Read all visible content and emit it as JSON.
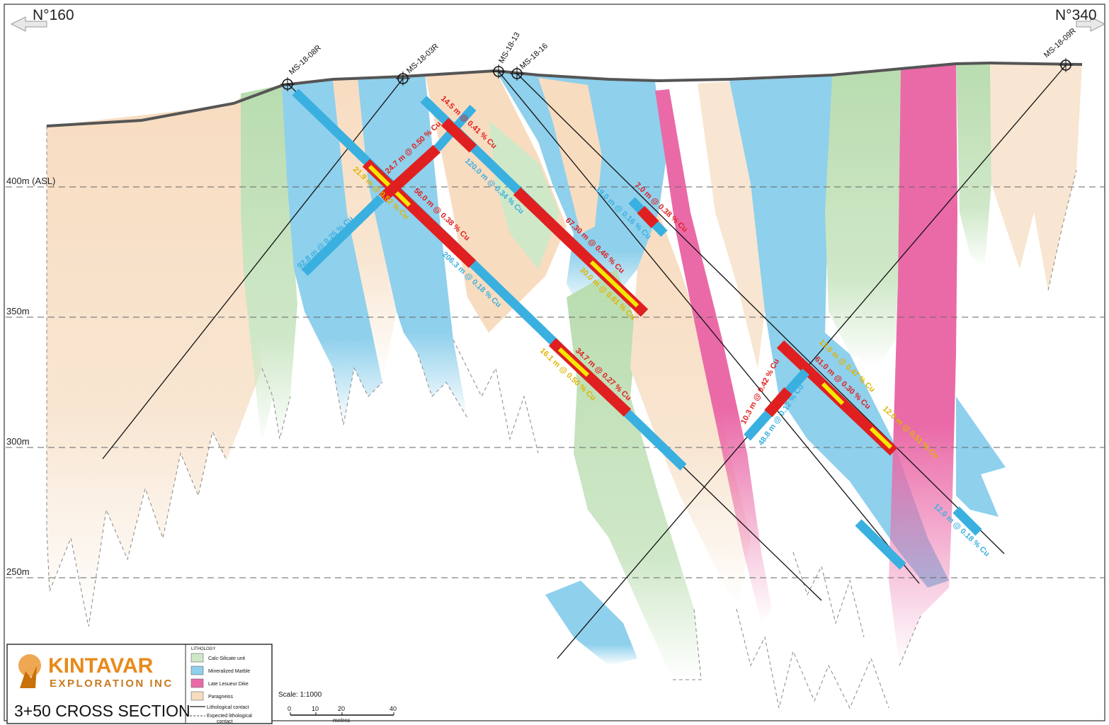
{
  "orientation": {
    "left": "N°160",
    "right": "N°340"
  },
  "elevations": [
    "400m (ASL)",
    "350m",
    "300m",
    "250m"
  ],
  "drillholes": [
    "MS-18-08R",
    "MS-18-03R",
    "MS-18-13",
    "MS-18-16",
    "MS-18-09R"
  ],
  "intercepts": [
    {
      "text": "92.8 m @ 0.25 % Cu",
      "color": "#3ab0e0"
    },
    {
      "text": "24.7 m @ 0.50 % Cu",
      "color": "#e02020"
    },
    {
      "text": "21.9 m @ 0.52 % Cu",
      "color": "#e0b400"
    },
    {
      "text": "56.0 m @ 0.38 % Cu",
      "color": "#e02020"
    },
    {
      "text": "206.3 m @ 0.18 % Cu",
      "color": "#3ab0e0"
    },
    {
      "text": "14.5 m @ 0.41 % Cu",
      "color": "#e02020"
    },
    {
      "text": "120.0 m @ 0.34 % Cu",
      "color": "#3ab0e0"
    },
    {
      "text": "67.30 m @ 0.46 % Cu",
      "color": "#e02020"
    },
    {
      "text": "30.0 m @ 0.61 % Cu",
      "color": "#e0b400"
    },
    {
      "text": "34.7 m @ 0.27 % Cu",
      "color": "#e02020"
    },
    {
      "text": "16.1 m @ 0.50 % Cu",
      "color": "#e0b400"
    },
    {
      "text": "19.0 m @ 0.16 % Cu",
      "color": "#3ab0e0"
    },
    {
      "text": "7.0 m @ 0.38 % Cu",
      "color": "#e02020"
    },
    {
      "text": "10.3 m @ 0.42 % Cu",
      "color": "#e02020"
    },
    {
      "text": "48.8 m @ 0.12 % Cu",
      "color": "#3ab0e0"
    },
    {
      "text": "13.0 m @ 0.47 % Cu",
      "color": "#e0b400"
    },
    {
      "text": "61.0 m @ 0.30 % Cu",
      "color": "#e02020"
    },
    {
      "text": "12.0 m @ 0.51 % Cu",
      "color": "#e0b400"
    },
    {
      "text": "12.0 m @ 0.18 % Cu",
      "color": "#3ab0e0"
    }
  ],
  "legend": {
    "title": "LITHOLOGY",
    "items": [
      {
        "label": "Calc-Silicate unit",
        "color": "#cfe8c8"
      },
      {
        "label": "Mineralized Marble",
        "color": "#8fd0ec"
      },
      {
        "label": "Late Lesueur Dike",
        "color": "#ea6aa8"
      },
      {
        "label": "Paragneiss",
        "color": "#f8dcc0"
      }
    ],
    "lith_contact": "Lithological contact",
    "expected_contact_1": "Expected lithological",
    "expected_contact_2": "contact"
  },
  "company": {
    "name": "KINTAVAR",
    "sub": "EXPLORATION INC",
    "section": "3+50 CROSS SECTION"
  },
  "scale": {
    "title": "Scale: 1:1000",
    "ticks": [
      "0",
      "10",
      "20",
      "40"
    ],
    "unit": "metres"
  },
  "colors": {
    "marble": "#8fd0ec",
    "calc": "#cfe8c8",
    "dike": "#ea6aa8",
    "gneiss": "#f8dcc0",
    "low": "#3ab0e0",
    "mid": "#e02020",
    "high": "#f4e800",
    "brand": "#e88a1a"
  }
}
